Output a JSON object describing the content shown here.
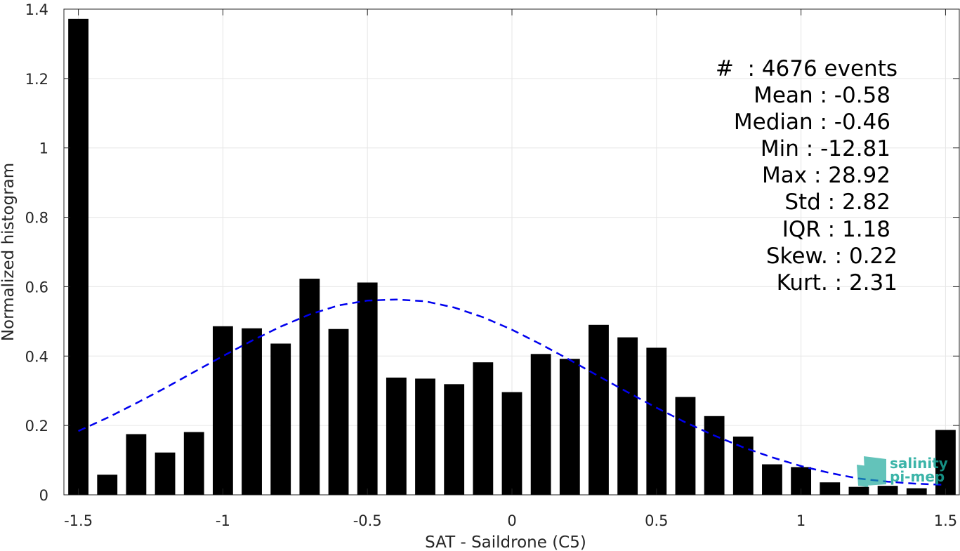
{
  "chart_data": {
    "type": "bar",
    "title": "",
    "xlabel": "SAT - Saildrone (C5)",
    "ylabel": "Normalized histogram",
    "xlim": [
      -1.55,
      1.55
    ],
    "ylim": [
      0,
      1.4
    ],
    "xticks": [
      -1.5,
      -1,
      -0.5,
      0,
      0.5,
      1,
      1.5
    ],
    "xtick_labels": [
      "-1.5",
      "-1",
      "-0.5",
      "0",
      "0.5",
      "1",
      "1.5"
    ],
    "yticks": [
      0,
      0.2,
      0.4,
      0.6,
      0.8,
      1,
      1.2,
      1.4
    ],
    "ytick_labels": [
      "0",
      "0.2",
      "0.4",
      "0.6",
      "0.8",
      "1",
      "1.2",
      "1.4"
    ],
    "grid": true,
    "bar_color": "#000000",
    "bar_width": 0.07,
    "x": [
      -1.5,
      -1.4,
      -1.3,
      -1.2,
      -1.1,
      -1.0,
      -0.9,
      -0.8,
      -0.7,
      -0.6,
      -0.5,
      -0.4,
      -0.3,
      -0.2,
      -0.1,
      0.0,
      0.1,
      0.2,
      0.3,
      0.4,
      0.5,
      0.6,
      0.7,
      0.8,
      0.9,
      1.0,
      1.1,
      1.2,
      1.3,
      1.4,
      1.5
    ],
    "values": [
      1.372,
      0.058,
      0.175,
      0.122,
      0.181,
      0.486,
      0.48,
      0.436,
      0.623,
      0.478,
      0.612,
      0.338,
      0.335,
      0.319,
      0.382,
      0.296,
      0.406,
      0.392,
      0.49,
      0.454,
      0.424,
      0.282,
      0.227,
      0.168,
      0.088,
      0.08,
      0.036,
      0.023,
      0.026,
      0.019,
      0.187
    ],
    "fit_curve": {
      "style": "dashed",
      "color": "#0000ee",
      "x": [
        -1.5,
        -1.4,
        -1.3,
        -1.2,
        -1.1,
        -1.0,
        -0.9,
        -0.8,
        -0.7,
        -0.6,
        -0.5,
        -0.4,
        -0.3,
        -0.2,
        -0.1,
        0.0,
        0.1,
        0.2,
        0.3,
        0.4,
        0.5,
        0.6,
        0.7,
        0.8,
        0.9,
        1.0,
        1.1,
        1.2,
        1.3,
        1.4,
        1.5
      ],
      "y": [
        0.184,
        0.222,
        0.264,
        0.308,
        0.354,
        0.4,
        0.444,
        0.485,
        0.52,
        0.546,
        0.56,
        0.563,
        0.558,
        0.54,
        0.512,
        0.476,
        0.434,
        0.389,
        0.342,
        0.296,
        0.251,
        0.209,
        0.171,
        0.137,
        0.108,
        0.083,
        0.063,
        0.047,
        0.038,
        0.032,
        0.029
      ]
    },
    "annotations": [
      "#  : 4676 events",
      "Mean : -0.58",
      "Median : -0.46",
      "Min : -12.81",
      "Max : 28.92",
      "Std : 2.82",
      "IQR : 1.18",
      "Skew. : 0.22",
      "Kurt. : 2.31"
    ]
  },
  "logo": {
    "line1": "salinity",
    "line2": "pi-mep",
    "color": "#1aa89a"
  }
}
